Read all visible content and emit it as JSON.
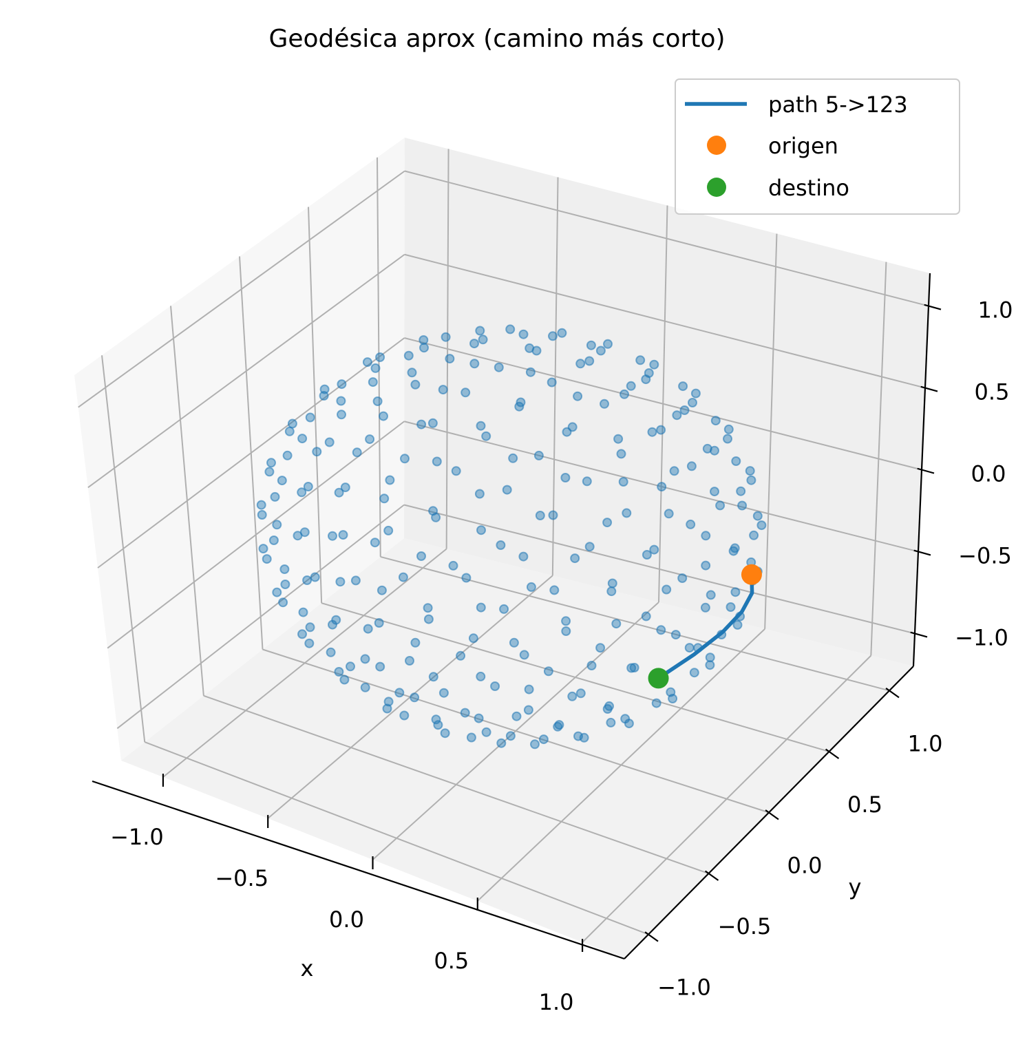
{
  "chart_data": {
    "type": "scatter",
    "title": "Geodésica aprox (camino más corto)",
    "xlabel": "x",
    "ylabel": "y",
    "zlabel": "",
    "x_ticks": [
      -1.0,
      -0.5,
      0.0,
      0.5,
      1.0
    ],
    "y_ticks": [
      -1.0,
      -0.5,
      0.0,
      0.5,
      1.0
    ],
    "z_ticks": [
      -1.0,
      -0.5,
      0.0,
      0.5,
      1.0
    ],
    "x_tick_labels": [
      "−1.0",
      "−0.5",
      "0.0",
      "0.5",
      "1.0"
    ],
    "y_tick_labels": [
      "−1.0",
      "−0.5",
      "0.0",
      "0.5",
      "1.0"
    ],
    "z_tick_labels": [
      "−1.0",
      "−0.5",
      "0.0",
      "0.5",
      "1.0"
    ],
    "xlim": [
      -1.2,
      1.2
    ],
    "ylim": [
      -1.2,
      1.2
    ],
    "zlim": [
      -1.2,
      1.2
    ],
    "grid": true,
    "legend_position": "top-right",
    "legend": [
      {
        "label": "path 5->123",
        "kind": "line",
        "color": "#1f77b4"
      },
      {
        "label": "origen",
        "kind": "marker",
        "color": "#ff7f0e"
      },
      {
        "label": "destino",
        "kind": "marker",
        "color": "#2ca02c"
      }
    ],
    "point_color": "#1f77b4",
    "point_count": 250,
    "point_radius_data": 1.0,
    "path": [
      [
        0.972,
        0.234,
        0.0
      ],
      [
        0.93,
        0.314,
        -0.19
      ],
      [
        0.86,
        0.356,
        -0.365
      ],
      [
        0.77,
        0.358,
        -0.528
      ],
      [
        0.661,
        0.318,
        -0.68
      ],
      [
        0.547,
        0.227,
        -0.806
      ]
    ],
    "origin_point": [
      0.972,
      0.234,
      0.0
    ],
    "destination_point": [
      0.547,
      0.227,
      -0.806
    ]
  }
}
